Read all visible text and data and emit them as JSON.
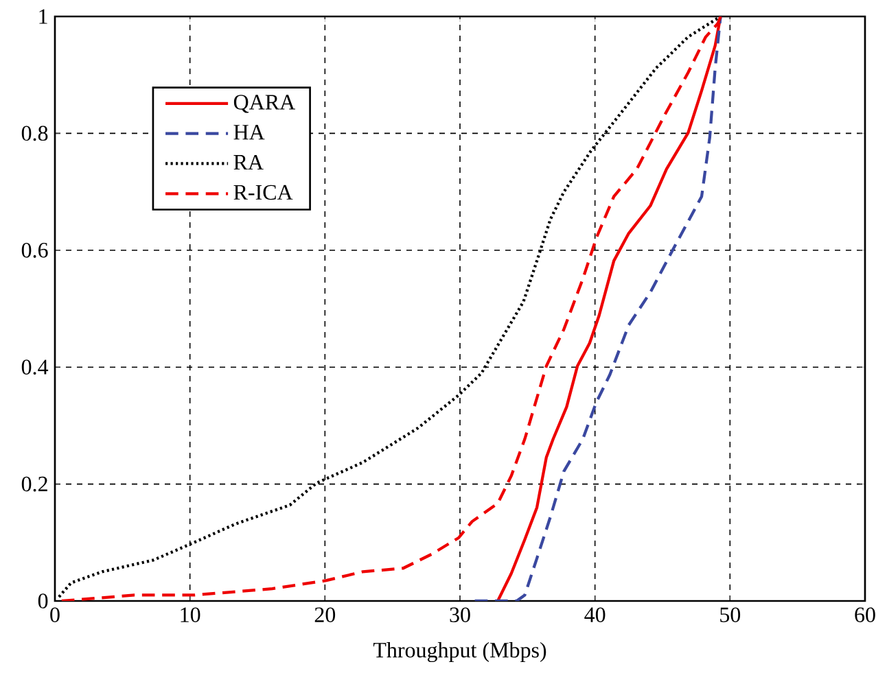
{
  "chart_data": {
    "type": "line",
    "xlabel": "Throughput (Mbps)",
    "xlim": [
      0,
      60
    ],
    "ylim": [
      0,
      1
    ],
    "xticks": [
      0,
      10,
      20,
      30,
      40,
      50,
      60
    ],
    "yticks": [
      0,
      0.2,
      0.4,
      0.6,
      0.8,
      1
    ],
    "grid": true,
    "legend": "top left",
    "series": [
      {
        "name": "QARA",
        "color": "#ee0000",
        "line_style": "solid",
        "x": [
          32.8,
          33.8,
          34.8,
          35.7,
          36.4,
          36.9,
          37.9,
          38.7,
          39.6,
          40.3,
          41.4,
          42.5,
          44.1,
          45.3,
          46.9,
          47.9,
          48.9,
          49.3
        ],
        "values": [
          0,
          0.047,
          0.105,
          0.16,
          0.246,
          0.277,
          0.332,
          0.402,
          0.441,
          0.488,
          0.582,
          0.629,
          0.676,
          0.739,
          0.801,
          0.873,
          0.95,
          1
        ]
      },
      {
        "name": "HA",
        "color": "#3a48a0",
        "line_style": "dashed",
        "x": [
          31.1,
          34.2,
          34.8,
          35.7,
          36.7,
          37.7,
          39.1,
          40.1,
          41.1,
          42.5,
          44.1,
          45.7,
          47.9,
          48.5,
          48.9,
          49.3
        ],
        "values": [
          0,
          0,
          0.01,
          0.073,
          0.144,
          0.222,
          0.277,
          0.34,
          0.387,
          0.472,
          0.528,
          0.598,
          0.692,
          0.793,
          0.911,
          1
        ]
      },
      {
        "name": "RA",
        "color": "#000000",
        "line_style": "dotted",
        "x": [
          0.3,
          1.2,
          3.5,
          7.3,
          10.3,
          13.4,
          17.4,
          19.4,
          22.8,
          26.9,
          29.9,
          31.6,
          33.3,
          34.7,
          35.7,
          36.7,
          37.7,
          39.7,
          42.1,
          44.5,
          46.9,
          49.3
        ],
        "values": [
          0.007,
          0.031,
          0.05,
          0.07,
          0.1,
          0.132,
          0.164,
          0.202,
          0.237,
          0.296,
          0.352,
          0.39,
          0.457,
          0.512,
          0.582,
          0.653,
          0.7,
          0.77,
          0.84,
          0.911,
          0.965,
          1
        ]
      },
      {
        "name": "R-ICA",
        "color": "#ee0000",
        "line_style": "dashed",
        "x": [
          0.5,
          5.9,
          10.3,
          16.1,
          20.1,
          22.8,
          25.8,
          27.9,
          29.9,
          30.9,
          32.8,
          33.8,
          34.8,
          36.4,
          37.7,
          39.1,
          40.1,
          41.4,
          43.1,
          45.2,
          46.9,
          48.2,
          49.1,
          49.3
        ],
        "values": [
          0,
          0.01,
          0.01,
          0.021,
          0.035,
          0.05,
          0.056,
          0.08,
          0.108,
          0.136,
          0.167,
          0.214,
          0.277,
          0.402,
          0.465,
          0.551,
          0.621,
          0.692,
          0.739,
          0.833,
          0.904,
          0.965,
          0.988,
          1
        ]
      }
    ]
  }
}
